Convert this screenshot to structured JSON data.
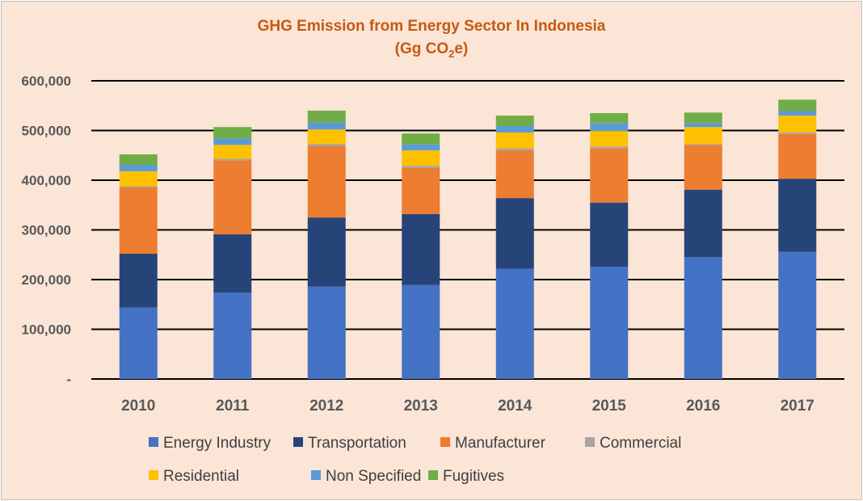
{
  "chart_data": {
    "type": "bar",
    "stacked": true,
    "title": "GHG Emission  from Energy Sector In Indonesia",
    "subtitle_parts": [
      "(Gg CO",
      "2",
      "e)"
    ],
    "xlabel": "",
    "ylabel": "",
    "ylim": [
      0,
      600000
    ],
    "yticks": [
      0,
      100000,
      200000,
      300000,
      400000,
      500000,
      600000
    ],
    "ytick_labels": [
      "-",
      "100,000",
      "200,000",
      "300,000",
      "400,000",
      "500,000",
      "600,000"
    ],
    "grid": true,
    "legend_position": "bottom",
    "categories": [
      "2010",
      "2011",
      "2012",
      "2013",
      "2014",
      "2015",
      "2016",
      "2017"
    ],
    "series": [
      {
        "name": "Energy Industry",
        "color": "#4472c4",
        "values": [
          144000,
          174000,
          186000,
          189000,
          222000,
          226000,
          245000,
          256000
        ]
      },
      {
        "name": "Transportation",
        "color": "#264478",
        "values": [
          108000,
          117000,
          139000,
          143000,
          142000,
          129000,
          136000,
          147000
        ]
      },
      {
        "name": "Manufacturer",
        "color": "#ed7d31",
        "values": [
          134000,
          149000,
          144000,
          93000,
          96000,
          109000,
          90000,
          90000
        ]
      },
      {
        "name": "Commercial",
        "color": "#a5a5a5",
        "values": [
          2000,
          3000,
          4000,
          4000,
          4000,
          4000,
          2000,
          3000
        ]
      },
      {
        "name": "Residential",
        "color": "#ffc000",
        "values": [
          30000,
          28000,
          29000,
          31000,
          32000,
          31000,
          34000,
          34000
        ]
      },
      {
        "name": "Non Specified",
        "color": "#5b9bd5",
        "values": [
          13000,
          13000,
          14000,
          12000,
          13000,
          16000,
          8000,
          9000
        ]
      },
      {
        "name": "Fugitives",
        "color": "#70ad47",
        "values": [
          21000,
          23000,
          24000,
          22000,
          21000,
          20000,
          21000,
          23000
        ]
      }
    ]
  }
}
